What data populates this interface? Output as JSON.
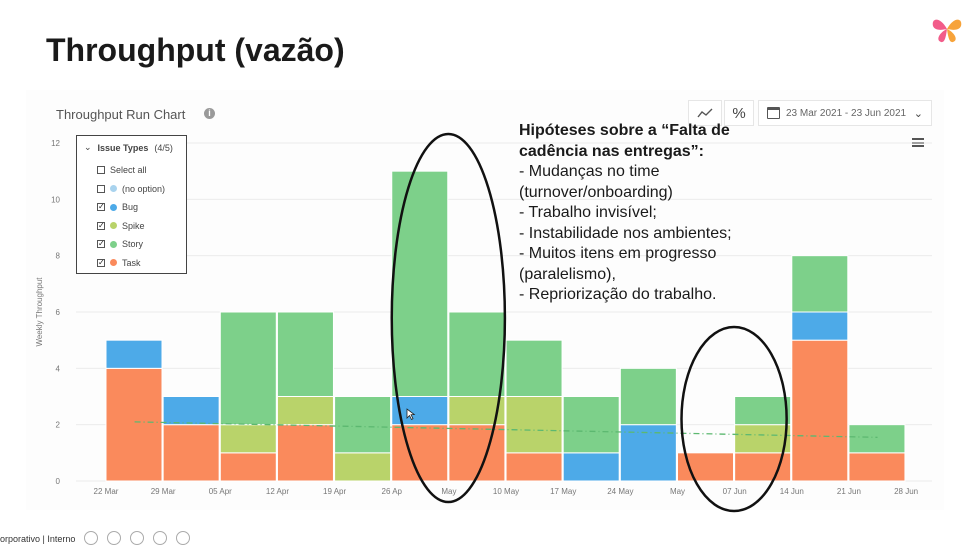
{
  "slide": {
    "title": "Throughput (vazão)"
  },
  "chart_header": {
    "title": "Throughput Run Chart",
    "info_icon": "info-icon",
    "percent_label": "%",
    "date_range": "23 Mar 2021 - 23 Jun 2021"
  },
  "legend": {
    "header": "Issue Types",
    "count": "(4/5)",
    "items": [
      {
        "label": "Select all",
        "checked": false,
        "color": ""
      },
      {
        "label": "(no option)",
        "checked": false,
        "color": "#a9d3ee"
      },
      {
        "label": "Bug",
        "checked": true,
        "color": "#4daae8"
      },
      {
        "label": "Spike",
        "checked": true,
        "color": "#b9d36a"
      },
      {
        "label": "Story",
        "checked": true,
        "color": "#7dd08a"
      },
      {
        "label": "Task",
        "checked": true,
        "color": "#fa8a5c"
      }
    ]
  },
  "hypothesis": {
    "title_lines": [
      "Hipóteses sobre a “Falta de",
      "cadência nas entregas”:"
    ],
    "lines": [
      "- Mudanças no time",
      "(turnover/onboarding)",
      "- Trabalho invisível;",
      "- Instabilidade nos ambientes;",
      "- Muitos itens em progresso",
      "(paralelismo),",
      "- Repriorização do trabalho."
    ]
  },
  "footer": {
    "text": "orporativo | Interno"
  },
  "colors": {
    "task": "#fa8a5c",
    "bug": "#4daae8",
    "spike": "#b9d36a",
    "story": "#7dd08a",
    "trend": "#5cb870",
    "ellipse": "#111111"
  },
  "chart_data": {
    "type": "bar",
    "stacked": true,
    "title": "Throughput Run Chart",
    "ylabel": "Weekly Throughput",
    "xlabel": "",
    "ylim": [
      0,
      12
    ],
    "yticks": [
      0,
      2,
      4,
      6,
      8,
      10,
      12
    ],
    "categories": [
      "22 Mar",
      "29 Mar",
      "05 Apr",
      "12 Apr",
      "19 Apr",
      "26 Apr",
      "03 May",
      "10 May",
      "17 May",
      "24 May",
      "31 May",
      "07 Jun",
      "14 Jun",
      "21 Jun"
    ],
    "tick_labels": [
      "22 Mar",
      "29 Mar",
      "05 Apr",
      "12 Apr",
      "19 Apr",
      "26 Ap",
      "May",
      "10 May",
      "17 May",
      "24 May",
      "May",
      "07 Jun",
      "14 Jun",
      "21 Jun",
      "28 Jun"
    ],
    "series": [
      {
        "name": "Task",
        "values": [
          4,
          2,
          1,
          2,
          0,
          2,
          2,
          1,
          0,
          0,
          1,
          1,
          5,
          1
        ]
      },
      {
        "name": "Spike",
        "values": [
          0,
          0,
          1,
          1,
          1,
          0,
          1,
          2,
          0,
          0,
          0,
          1,
          0,
          0
        ]
      },
      {
        "name": "Bug",
        "values": [
          1,
          1,
          0,
          0,
          0,
          1,
          0,
          0,
          1,
          2,
          0,
          0,
          1,
          0
        ]
      },
      {
        "name": "Story",
        "values": [
          0,
          0,
          4,
          3,
          2,
          8,
          3,
          2,
          2,
          2,
          0,
          1,
          2,
          1
        ]
      }
    ],
    "trend_line": {
      "start": 2.1,
      "end": 1.55
    },
    "legend_position": "top-left",
    "grid": true,
    "annotations": [
      {
        "type": "ellipse",
        "around": [
          "26 Apr",
          "03 May"
        ]
      },
      {
        "type": "ellipse",
        "around": [
          "31 May",
          "07 Jun"
        ]
      }
    ]
  }
}
